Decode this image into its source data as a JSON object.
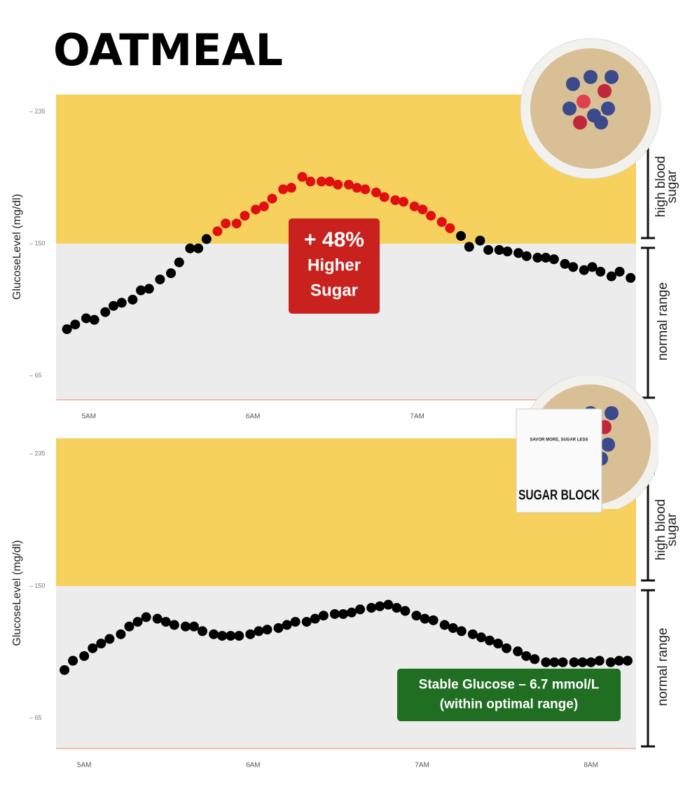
{
  "title": "OATMEAL",
  "chart_data": [
    {
      "type": "scatter",
      "y_label": "GlucoseLevel (mg/dl)",
      "xlim": [
        288,
        500
      ],
      "ylim": [
        50,
        246
      ],
      "xticks": [
        {
          "value": 300,
          "label": "5AM"
        },
        {
          "value": 360,
          "label": "6AM"
        },
        {
          "value": 420,
          "label": "7AM"
        }
      ],
      "yticks": [
        {
          "value": 65,
          "label": "– 65"
        },
        {
          "value": 150,
          "label": "– 150"
        },
        {
          "value": 235,
          "label": "– 235"
        }
      ],
      "band_threshold": 150,
      "high_color": "#f6d15d",
      "normal_color": "#ececec",
      "high_label": "high blood sugar",
      "normal_label": "normal range",
      "series": [
        {
          "color": "#000000",
          "x": [
            292,
            295,
            299,
            302,
            306,
            309,
            312,
            316,
            319,
            322,
            326,
            330,
            333,
            337,
            340,
            343
          ],
          "values": [
            95,
            98,
            102,
            101,
            106,
            110,
            112,
            114,
            120,
            121,
            127,
            131,
            138,
            147,
            147,
            153
          ]
        },
        {
          "color": "#e01010",
          "x": [
            347,
            350,
            354,
            357,
            361,
            364,
            367,
            371,
            374,
            378,
            381,
            385,
            388,
            391,
            395,
            398,
            401,
            405,
            408,
            412,
            415,
            419,
            422,
            425,
            429,
            432
          ],
          "values": [
            158,
            163,
            163,
            168,
            172,
            174,
            179,
            185,
            186,
            193,
            190,
            190,
            190,
            188,
            188,
            186,
            185,
            183,
            180,
            178,
            177,
            174,
            172,
            168,
            164,
            160
          ]
        },
        {
          "color": "#000000",
          "x": [
            436,
            439,
            443,
            446,
            450,
            453,
            457,
            460,
            464,
            467,
            470,
            474,
            477,
            481,
            484,
            487,
            491,
            494,
            498
          ],
          "values": [
            155,
            148,
            152,
            146,
            146,
            145,
            144,
            142,
            141,
            141,
            140,
            137,
            135,
            133,
            135,
            132,
            129,
            132,
            128
          ]
        }
      ],
      "annotation": {
        "color": "#c9211e",
        "lines": [
          "+ 48%",
          "Higher",
          "Sugar"
        ]
      }
    },
    {
      "type": "scatter",
      "y_label": "GlucoseLevel (mg/dl)",
      "xlim": [
        290,
        496
      ],
      "ylim": [
        46,
        245
      ],
      "xticks": [
        {
          "value": 300,
          "label": "5AM"
        },
        {
          "value": 360,
          "label": "6AM"
        },
        {
          "value": 420,
          "label": "7AM"
        },
        {
          "value": 480,
          "label": "8AM"
        }
      ],
      "yticks": [
        {
          "value": 65,
          "label": "– 65"
        },
        {
          "value": 150,
          "label": "– 150"
        },
        {
          "value": 235,
          "label": "– 235"
        }
      ],
      "band_threshold": 150,
      "high_color": "#f6d15d",
      "normal_color": "#ececec",
      "high_label": "high blood sugar",
      "normal_label": "normal range",
      "series": [
        {
          "color": "#000000",
          "x": [
            293,
            296,
            300,
            303,
            306,
            309,
            313,
            316,
            319,
            322,
            326,
            329,
            332,
            336,
            339,
            342,
            346,
            349,
            352,
            355,
            359,
            362,
            365,
            369,
            372,
            375,
            379,
            382,
            385,
            389,
            392,
            395,
            398,
            402,
            405,
            408,
            411,
            414,
            418,
            421,
            424,
            428,
            431,
            434,
            438,
            441,
            444,
            447,
            450,
            454,
            457,
            460,
            464,
            467,
            470,
            474,
            477,
            480,
            483,
            487,
            490,
            493
          ],
          "values": [
            96,
            102,
            105,
            110,
            113,
            116,
            119,
            124,
            127,
            130,
            129,
            127,
            125,
            124,
            124,
            121,
            119,
            118,
            118,
            118,
            119,
            121,
            122,
            123,
            125,
            127,
            127,
            129,
            131,
            132,
            132,
            133,
            135,
            136,
            137,
            138,
            136,
            134,
            131,
            129,
            128,
            125,
            123,
            121,
            119,
            117,
            115,
            113,
            110,
            108,
            105,
            103,
            101,
            101,
            101,
            101,
            101,
            101,
            102,
            101,
            102,
            102
          ]
        }
      ],
      "annotation": {
        "color": "#1f6e22",
        "lines": [
          "Stable Glucose – 6.7 mmol/L",
          "(within optimal range)"
        ]
      },
      "product": {
        "tagline": "SAVOR MORE, SUGAR LESS",
        "brand": "SUGAR BLOCK"
      }
    }
  ]
}
